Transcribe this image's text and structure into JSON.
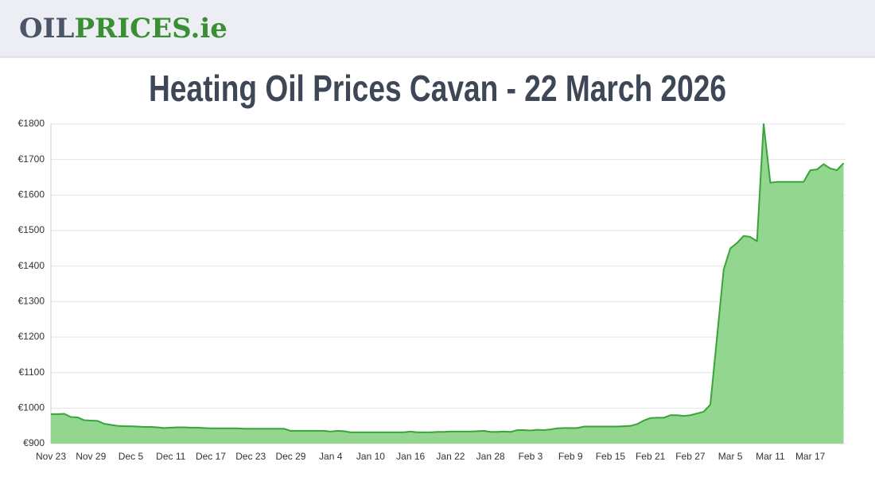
{
  "header": {
    "logo_dark": "OIL",
    "logo_green": "PRICES.ie"
  },
  "chart_data": {
    "type": "area",
    "title": "Heating Oil Prices Cavan - 22 March 2026",
    "categories": [
      "Nov 23",
      null,
      null,
      null,
      null,
      null,
      "Nov 29",
      null,
      null,
      null,
      null,
      null,
      "Dec 5",
      null,
      null,
      null,
      null,
      null,
      "Dec 11",
      null,
      null,
      null,
      null,
      null,
      "Dec 17",
      null,
      null,
      null,
      null,
      null,
      "Dec 23",
      null,
      null,
      null,
      null,
      null,
      "Dec 29",
      null,
      null,
      null,
      null,
      null,
      "Jan 4",
      null,
      null,
      null,
      null,
      null,
      "Jan 10",
      null,
      null,
      null,
      null,
      null,
      "Jan 16",
      null,
      null,
      null,
      null,
      null,
      "Jan 22",
      null,
      null,
      null,
      null,
      null,
      "Jan 28",
      null,
      null,
      null,
      null,
      null,
      "Feb 3",
      null,
      null,
      null,
      null,
      null,
      "Feb 9",
      null,
      null,
      null,
      null,
      null,
      "Feb 15",
      null,
      null,
      null,
      null,
      null,
      "Feb 21",
      null,
      null,
      null,
      null,
      null,
      "Feb 27",
      null,
      null,
      null,
      null,
      null,
      "Mar 5",
      null,
      null,
      null,
      null,
      null,
      "Mar 11",
      null,
      null,
      null,
      null,
      null,
      "Mar 17",
      null,
      null,
      null,
      null,
      null
    ],
    "values": [
      983,
      983,
      984,
      975,
      974,
      966,
      965,
      964,
      956,
      953,
      950,
      949,
      949,
      948,
      947,
      947,
      946,
      944,
      945,
      946,
      946,
      945,
      945,
      944,
      943,
      943,
      943,
      943,
      943,
      942,
      942,
      942,
      942,
      942,
      942,
      942,
      936,
      936,
      936,
      936,
      936,
      936,
      934,
      936,
      935,
      932,
      932,
      932,
      932,
      932,
      932,
      932,
      932,
      932,
      934,
      932,
      932,
      932,
      933,
      933,
      934,
      934,
      934,
      934,
      935,
      936,
      933,
      933,
      934,
      933,
      938,
      938,
      937,
      939,
      938,
      940,
      943,
      944,
      944,
      944,
      948,
      948,
      948,
      948,
      948,
      948,
      949,
      950,
      955,
      965,
      972,
      973,
      973,
      980,
      980,
      978,
      980,
      985,
      990,
      1010,
      1200,
      1390,
      1450,
      1465,
      1485,
      1482,
      1470,
      1800,
      1635,
      1637,
      1637,
      1637,
      1637,
      1637,
      1670,
      1672,
      1687,
      1675,
      1670,
      1690
    ],
    "color": "#3aa33a",
    "fill_color": "#92d68f",
    "ylim": [
      900,
      1800
    ],
    "yticks": [
      {
        "value": 900,
        "label": "€900"
      },
      {
        "value": 1000,
        "label": "€1000"
      },
      {
        "value": 1100,
        "label": "€1100"
      },
      {
        "value": 1200,
        "label": "€1200"
      },
      {
        "value": 1300,
        "label": "€1300"
      },
      {
        "value": 1400,
        "label": "€1400"
      },
      {
        "value": 1500,
        "label": "€1500"
      },
      {
        "value": 1600,
        "label": "€1600"
      },
      {
        "value": 1700,
        "label": "€1700"
      },
      {
        "value": 1800,
        "label": "€1800"
      }
    ],
    "grid": true
  }
}
